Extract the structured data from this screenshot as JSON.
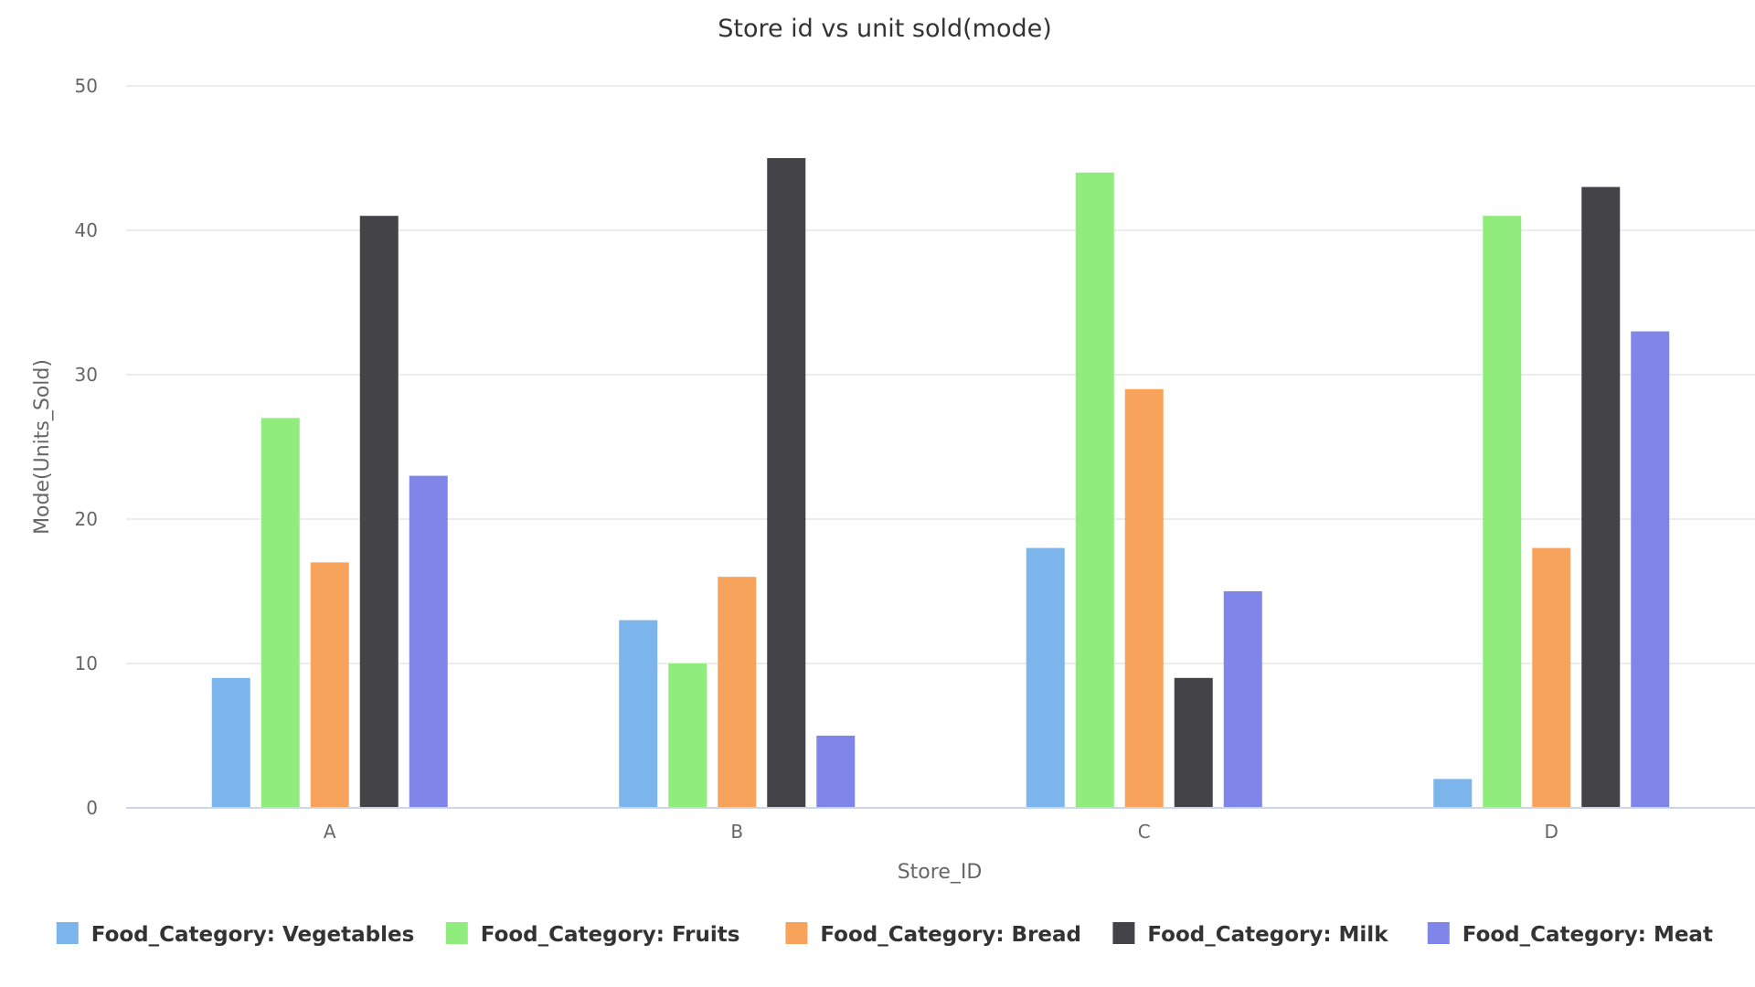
{
  "chart_data": {
    "type": "bar",
    "title": "Store id vs unit sold(mode)",
    "xlabel": "Store_ID",
    "ylabel": "Mode(Units_Sold)",
    "categories": [
      "A",
      "B",
      "C",
      "D"
    ],
    "ylim": [
      0,
      50
    ],
    "yticks": [
      0,
      10,
      20,
      30,
      40,
      50
    ],
    "grid": true,
    "legend_position": "bottom",
    "series": [
      {
        "name": "Food_Category: Vegetables",
        "color": "#7cb5ec",
        "values": [
          9,
          13,
          18,
          2
        ]
      },
      {
        "name": "Food_Category: Fruits",
        "color": "#90ed7d",
        "values": [
          27,
          10,
          44,
          41
        ]
      },
      {
        "name": "Food_Category: Bread",
        "color": "#f7a35c",
        "values": [
          17,
          16,
          29,
          18
        ]
      },
      {
        "name": "Food_Category: Milk",
        "color": "#434348",
        "values": [
          41,
          45,
          9,
          43
        ]
      },
      {
        "name": "Food_Category: Meat",
        "color": "#8085e9",
        "values": [
          23,
          5,
          15,
          33
        ]
      }
    ]
  }
}
